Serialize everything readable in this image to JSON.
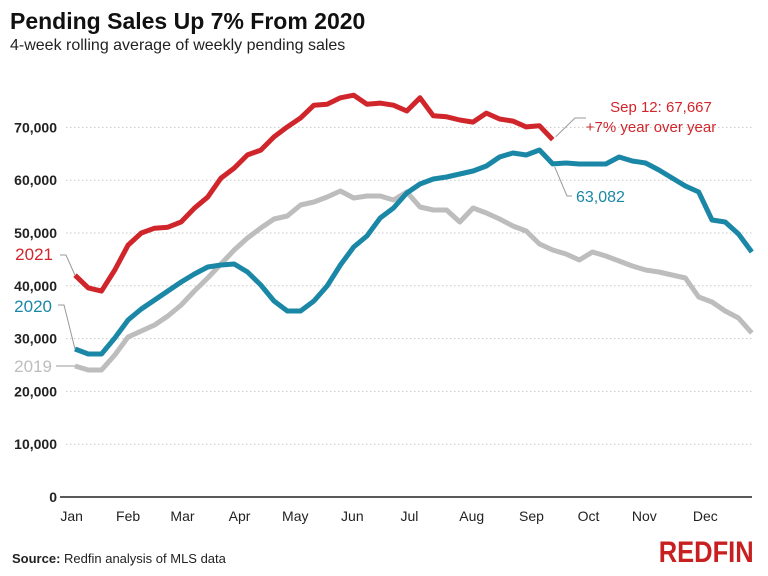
{
  "title": "Pending Sales Up 7% From 2020",
  "subtitle": "4-week rolling average of weekly pending sales",
  "source_label": "Source:",
  "source_text": " Redfin analysis of MLS data",
  "logo": "REDFIN",
  "chart_data": {
    "type": "line",
    "title": "Pending Sales Up 7% From 2020",
    "subtitle": "4-week rolling average of weekly pending sales",
    "x_unit": "week of year (weekly, Jan to Dec)",
    "x_tick_labels": [
      "Jan",
      "Feb",
      "Mar",
      "Apr",
      "May",
      "Jun",
      "Jul",
      "Aug",
      "Sep",
      "Oct",
      "Nov",
      "Dec"
    ],
    "y_ticks": [
      0,
      10000,
      20000,
      30000,
      40000,
      50000,
      60000,
      70000
    ],
    "y_tick_labels": [
      "0",
      "10,000",
      "20,000",
      "30,000",
      "40,000",
      "50,000",
      "60,000",
      "70,000"
    ],
    "ylim": [
      0,
      76000
    ],
    "grid": "horizontal dotted",
    "series": [
      {
        "name": "2021",
        "color": "#d0262b",
        "values": [
          42000,
          39600,
          39000,
          43000,
          47700,
          50000,
          50900,
          51100,
          52100,
          54700,
          56800,
          60400,
          62300,
          64800,
          65700,
          68200,
          70100,
          71800,
          74200,
          74400,
          75600,
          76100,
          74400,
          74600,
          74200,
          73100,
          75600,
          72200,
          72000,
          71400,
          71000,
          72700,
          71600,
          71200,
          70100,
          70300,
          67667
        ]
      },
      {
        "name": "2020",
        "color": "#1b87a6",
        "values": [
          28030,
          27080,
          27080,
          30110,
          33520,
          35610,
          37310,
          39020,
          40720,
          42230,
          43560,
          43940,
          44130,
          42610,
          40150,
          37120,
          35230,
          35230,
          37120,
          39960,
          43940,
          47350,
          49430,
          52840,
          54730,
          57580,
          59280,
          60230,
          60610,
          61170,
          61740,
          62690,
          64390,
          65150,
          64770,
          65720,
          63082,
          63260,
          63070,
          63070,
          63070,
          64390,
          63640,
          63260,
          61930,
          60420,
          58900,
          57770,
          52460,
          52080,
          49810,
          46400
        ]
      },
      {
        "name": "2019",
        "color": "#bdbdbd",
        "values": [
          24810,
          24050,
          24050,
          26890,
          30300,
          31440,
          32580,
          34280,
          36360,
          39020,
          41480,
          44130,
          46780,
          49050,
          50950,
          52650,
          53220,
          55300,
          55870,
          56820,
          57950,
          56630,
          57010,
          57010,
          56250,
          57770,
          54920,
          54360,
          54360,
          52080,
          54730,
          53790,
          52650,
          51330,
          50380,
          47920,
          46780,
          46020,
          44890,
          46400,
          45640,
          44700,
          43750,
          42990,
          42610,
          42050,
          41480,
          37880,
          36930,
          35230,
          33900,
          31060
        ]
      }
    ],
    "annotations": [
      {
        "text": "Sep 12: 67,667",
        "color": "#d0262b"
      },
      {
        "text": "+7% year over year",
        "color": "#d0262b"
      },
      {
        "text": "63,082",
        "color": "#1b87a6"
      }
    ]
  }
}
